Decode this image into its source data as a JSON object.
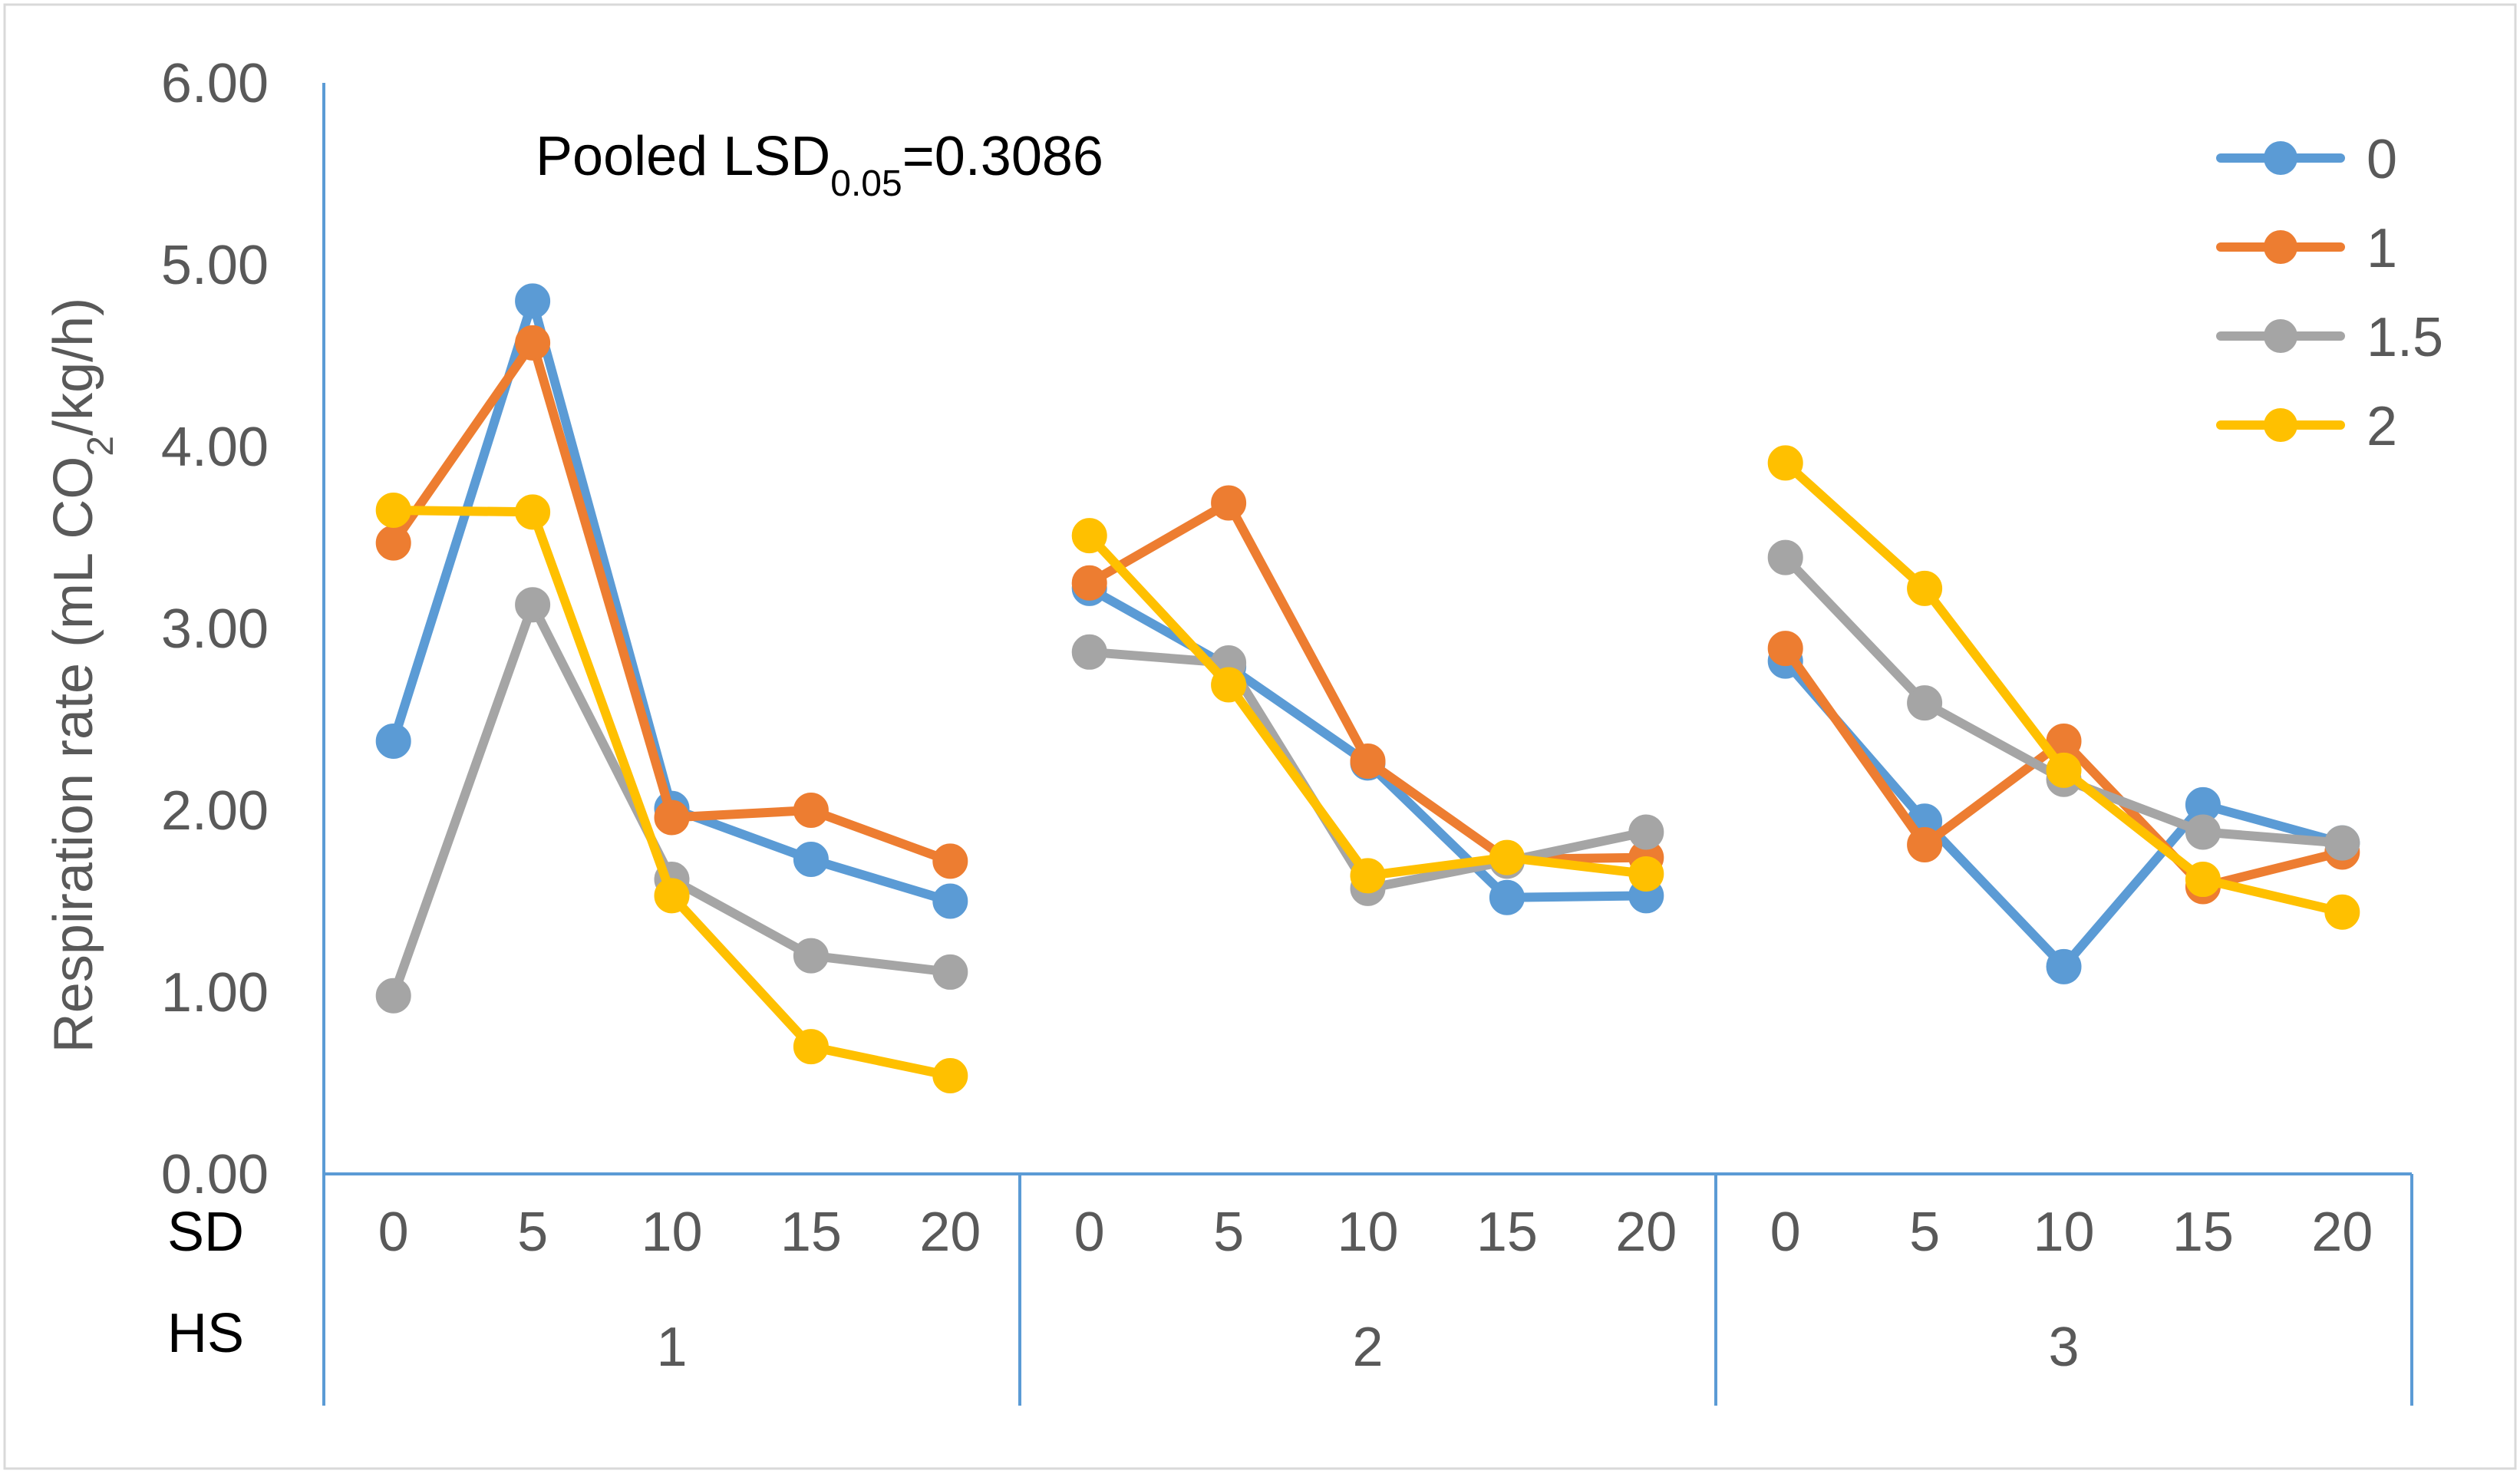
{
  "chart_data": {
    "type": "line",
    "ylabel": {
      "pre": "Respiration rate (mL CO",
      "sub": "2",
      "post": "/kg/h)"
    },
    "annotation": {
      "pre": "Pooled LSD",
      "sub": "0.05",
      "post": "=0.3086"
    },
    "ylim": [
      0,
      6
    ],
    "yticks": [
      "0.00",
      "1.00",
      "2.00",
      "3.00",
      "4.00",
      "5.00",
      "6.00"
    ],
    "row_labels": [
      "SD",
      "HS"
    ],
    "groups": [
      {
        "label": "1",
        "categories": [
          "0",
          "5",
          "10",
          "15",
          "20"
        ]
      },
      {
        "label": "2",
        "categories": [
          "0",
          "5",
          "10",
          "15",
          "20"
        ]
      },
      {
        "label": "3",
        "categories": [
          "0",
          "5",
          "10",
          "15",
          "20"
        ]
      }
    ],
    "legend_position": "top-right",
    "series": [
      {
        "name": "0",
        "color": "#5B9BD5",
        "values": [
          [
            2.38,
            4.8,
            2.01,
            1.73,
            1.5
          ],
          [
            3.22,
            2.79,
            2.26,
            1.52,
            1.53
          ],
          [
            2.82,
            1.94,
            1.14,
            2.03,
            1.82
          ]
        ]
      },
      {
        "name": "1",
        "color": "#ED7D31",
        "values": [
          [
            3.47,
            4.57,
            1.96,
            2.0,
            1.72
          ],
          [
            3.25,
            3.69,
            2.27,
            1.73,
            1.74
          ],
          [
            2.89,
            1.81,
            2.38,
            1.58,
            1.77
          ]
        ]
      },
      {
        "name": "1.5",
        "color": "#A5A5A5",
        "values": [
          [
            0.98,
            3.13,
            1.62,
            1.2,
            1.11
          ],
          [
            2.87,
            2.81,
            1.57,
            1.72,
            1.88
          ],
          [
            3.39,
            2.59,
            2.17,
            1.88,
            1.82
          ]
        ]
      },
      {
        "name": "2",
        "color": "#FFC000",
        "values": [
          [
            3.65,
            3.64,
            1.53,
            0.7,
            0.54
          ],
          [
            3.51,
            2.69,
            1.64,
            1.74,
            1.65
          ],
          [
            3.91,
            3.22,
            2.22,
            1.62,
            1.44
          ]
        ]
      }
    ]
  }
}
